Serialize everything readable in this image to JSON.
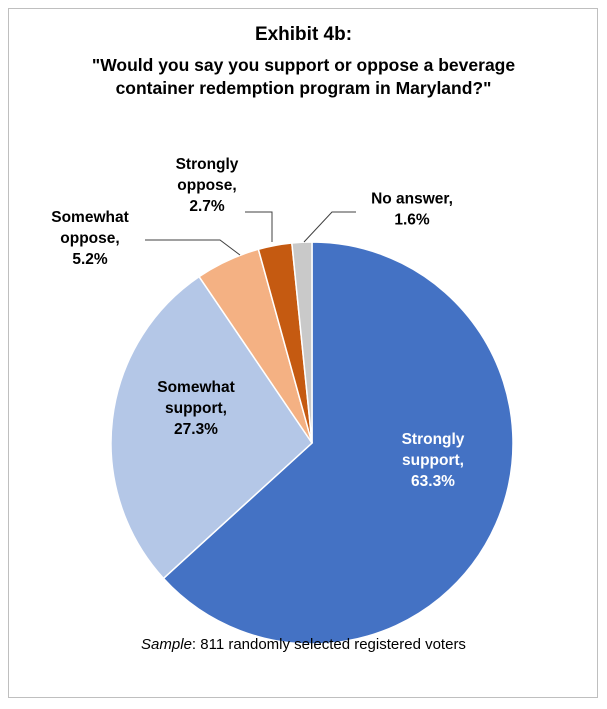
{
  "title": "Exhibit 4b:",
  "subtitle_line1": "\"Would you say you support or oppose a beverage",
  "subtitle_line2": "container redemption program in Maryland?\"",
  "footnote": {
    "label": "Sample",
    "text": ": 811 randomly selected registered voters"
  },
  "chart_data": {
    "type": "pie",
    "title": "Exhibit 4b:",
    "subtitle": "\"Would you say you support or oppose a beverage container redemption program in Maryland?\"",
    "slices": [
      {
        "label": "Strongly support",
        "value": 63.3,
        "value_label": "63.3%",
        "color": "#4472c4"
      },
      {
        "label": "Somewhat support",
        "value": 27.3,
        "value_label": "27.3%",
        "color": "#b4c7e7"
      },
      {
        "label": "Somewhat oppose",
        "value": 5.2,
        "value_label": "5.2%",
        "color": "#f4b183"
      },
      {
        "label": "Strongly oppose",
        "value": 2.7,
        "value_label": "2.7%",
        "color": "#c55a11"
      },
      {
        "label": "No answer",
        "value": 1.6,
        "value_label": "1.6%",
        "color": "#c9c9c9"
      }
    ],
    "start": "12 o'clock",
    "direction": "clockwise",
    "label_lines": [
      [
        "Strongly",
        "support,",
        "63.3%"
      ],
      [
        "Somewhat",
        "support,",
        "27.3%"
      ],
      [
        "Somewhat",
        "oppose,",
        "5.2%"
      ],
      [
        "Strongly",
        "oppose,",
        "2.7%"
      ],
      [
        "No answer,",
        "1.6%"
      ]
    ]
  }
}
